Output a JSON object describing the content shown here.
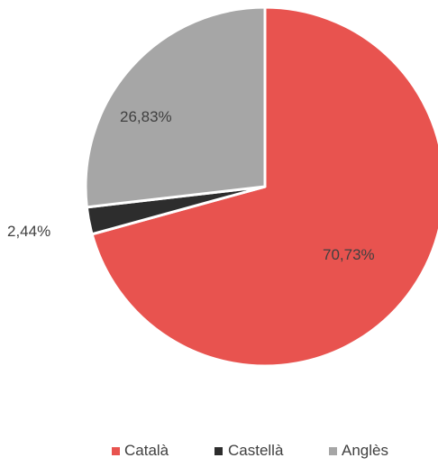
{
  "chart_data": {
    "type": "pie",
    "categories": [
      "Català",
      "Castellà",
      "Anglès"
    ],
    "values": [
      70.73,
      2.44,
      26.83
    ],
    "data_labels": [
      "70,73%",
      "2,44%",
      "26,83%"
    ],
    "colors": [
      "#e8534f",
      "#2d2d2d",
      "#a6a6a6"
    ],
    "legend_position": "bottom"
  }
}
